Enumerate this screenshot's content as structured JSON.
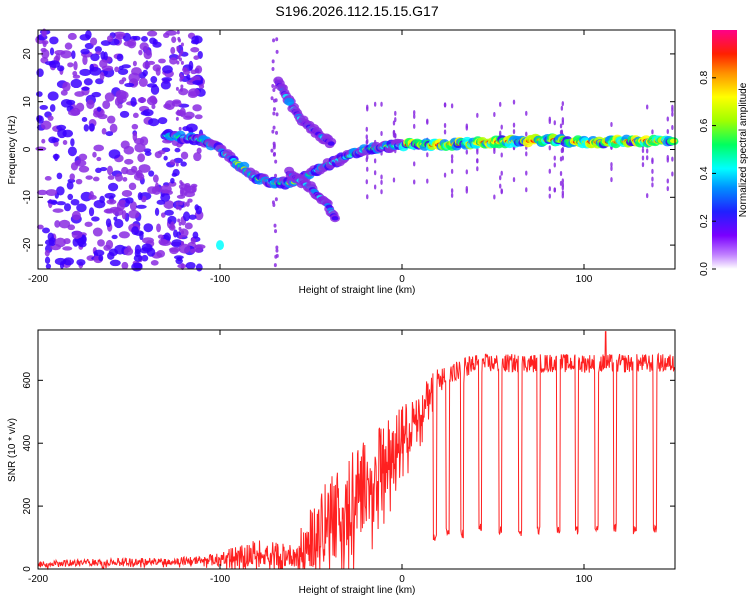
{
  "title": "S196.2026.112.15.15.G17",
  "colors": {
    "snr_line": "#ff2020",
    "frame": "#000000",
    "background": "#ffffff"
  },
  "chart_data": [
    {
      "type": "heatmap",
      "name": "spectrogram",
      "xlabel": "Height of straight line (km)",
      "ylabel": "Frequency (Hz)",
      "xlim": [
        -200,
        150
      ],
      "ylim": [
        -25,
        25
      ],
      "xticks": [
        -200,
        -100,
        0,
        100
      ],
      "xtick_labels": [
        "-200",
        "-100",
        "0",
        "100"
      ],
      "yticks": [
        -20,
        -10,
        0,
        10,
        20
      ],
      "ytick_labels": [
        "-20",
        "-10",
        "0",
        "10",
        "20"
      ],
      "colorbar": {
        "label": "Normalized spectral amplitude",
        "range": [
          0,
          1
        ],
        "ticks": [
          0.0,
          0.2,
          0.4,
          0.6,
          0.8
        ],
        "tick_labels": [
          "0.0",
          "0.2",
          "0.4",
          "0.6",
          "0.8"
        ],
        "colormap": [
          "#ffffff",
          "#8a2be2",
          "#3a00ff",
          "#0090ff",
          "#00ffff",
          "#00ff60",
          "#b8ff00",
          "#ffff00",
          "#ff9000",
          "#ff0000",
          "#ff0080"
        ]
      },
      "ridges": [
        {
          "name": "main-carrier",
          "points": [
            [
              -130,
              3
            ],
            [
              -110,
              2
            ],
            [
              -100,
              0
            ],
            [
              -90,
              -3
            ],
            [
              -80,
              -6
            ],
            [
              -70,
              -7
            ],
            [
              -60,
              -7
            ],
            [
              -50,
              -5
            ],
            [
              -40,
              -3
            ],
            [
              -30,
              -1.5
            ],
            [
              -20,
              0
            ],
            [
              -10,
              0.5
            ],
            [
              0,
              1
            ],
            [
              20,
              1
            ],
            [
              50,
              1.5
            ],
            [
              80,
              2
            ],
            [
              100,
              1.5
            ],
            [
              130,
              1.8
            ],
            [
              150,
              1.8
            ]
          ]
        },
        {
          "name": "upper-branch",
          "points": [
            [
              -68,
              14
            ],
            [
              -62,
              10
            ],
            [
              -55,
              6
            ],
            [
              -45,
              3
            ],
            [
              -38,
              1
            ]
          ]
        },
        {
          "name": "lower-branch",
          "points": [
            [
              -62,
              -5
            ],
            [
              -50,
              -8
            ],
            [
              -40,
              -12
            ],
            [
              -36,
              -15
            ]
          ]
        }
      ],
      "noise_region": [
        -200,
        -110
      ]
    },
    {
      "type": "line",
      "name": "snr",
      "xlabel": "Height of straight line (km)",
      "ylabel": "SNR (10 * v/v)",
      "xlim": [
        -200,
        150
      ],
      "ylim": [
        0,
        760
      ],
      "xticks": [
        -200,
        -100,
        0,
        100
      ],
      "xtick_labels": [
        "-200",
        "-100",
        "0",
        "100"
      ],
      "yticks": [
        0,
        200,
        400,
        600
      ],
      "ytick_labels": [
        "0",
        "200",
        "400",
        "600"
      ],
      "envelope": [
        {
          "x": -200,
          "base": 20,
          "amp": 20
        },
        {
          "x": -110,
          "base": 30,
          "amp": 25
        },
        {
          "x": -100,
          "base": 40,
          "amp": 40
        },
        {
          "x": -80,
          "base": 60,
          "amp": 90
        },
        {
          "x": -60,
          "base": 50,
          "amp": 70
        },
        {
          "x": -45,
          "base": 150,
          "amp": 250
        },
        {
          "x": -30,
          "base": 250,
          "amp": 300
        },
        {
          "x": -15,
          "base": 330,
          "amp": 260
        },
        {
          "x": 0,
          "base": 440,
          "amp": 200
        },
        {
          "x": 20,
          "base": 610,
          "amp": 80
        },
        {
          "x": 40,
          "base": 660,
          "amp": 60
        },
        {
          "x": 150,
          "base": 660,
          "amp": 60
        }
      ],
      "dips": [
        {
          "x": 18,
          "value": 100
        },
        {
          "x": 25,
          "value": 125
        },
        {
          "x": 33,
          "value": 110
        },
        {
          "x": 43,
          "value": 130
        },
        {
          "x": 54,
          "value": 120
        },
        {
          "x": 65,
          "value": 120
        },
        {
          "x": 75,
          "value": 125
        },
        {
          "x": 86,
          "value": 130
        },
        {
          "x": 96,
          "value": 125
        },
        {
          "x": 107,
          "value": 125
        },
        {
          "x": 117,
          "value": 130
        },
        {
          "x": 128,
          "value": 125
        },
        {
          "x": 139,
          "value": 130
        }
      ],
      "peak": {
        "x": 112,
        "value": 755
      }
    }
  ]
}
